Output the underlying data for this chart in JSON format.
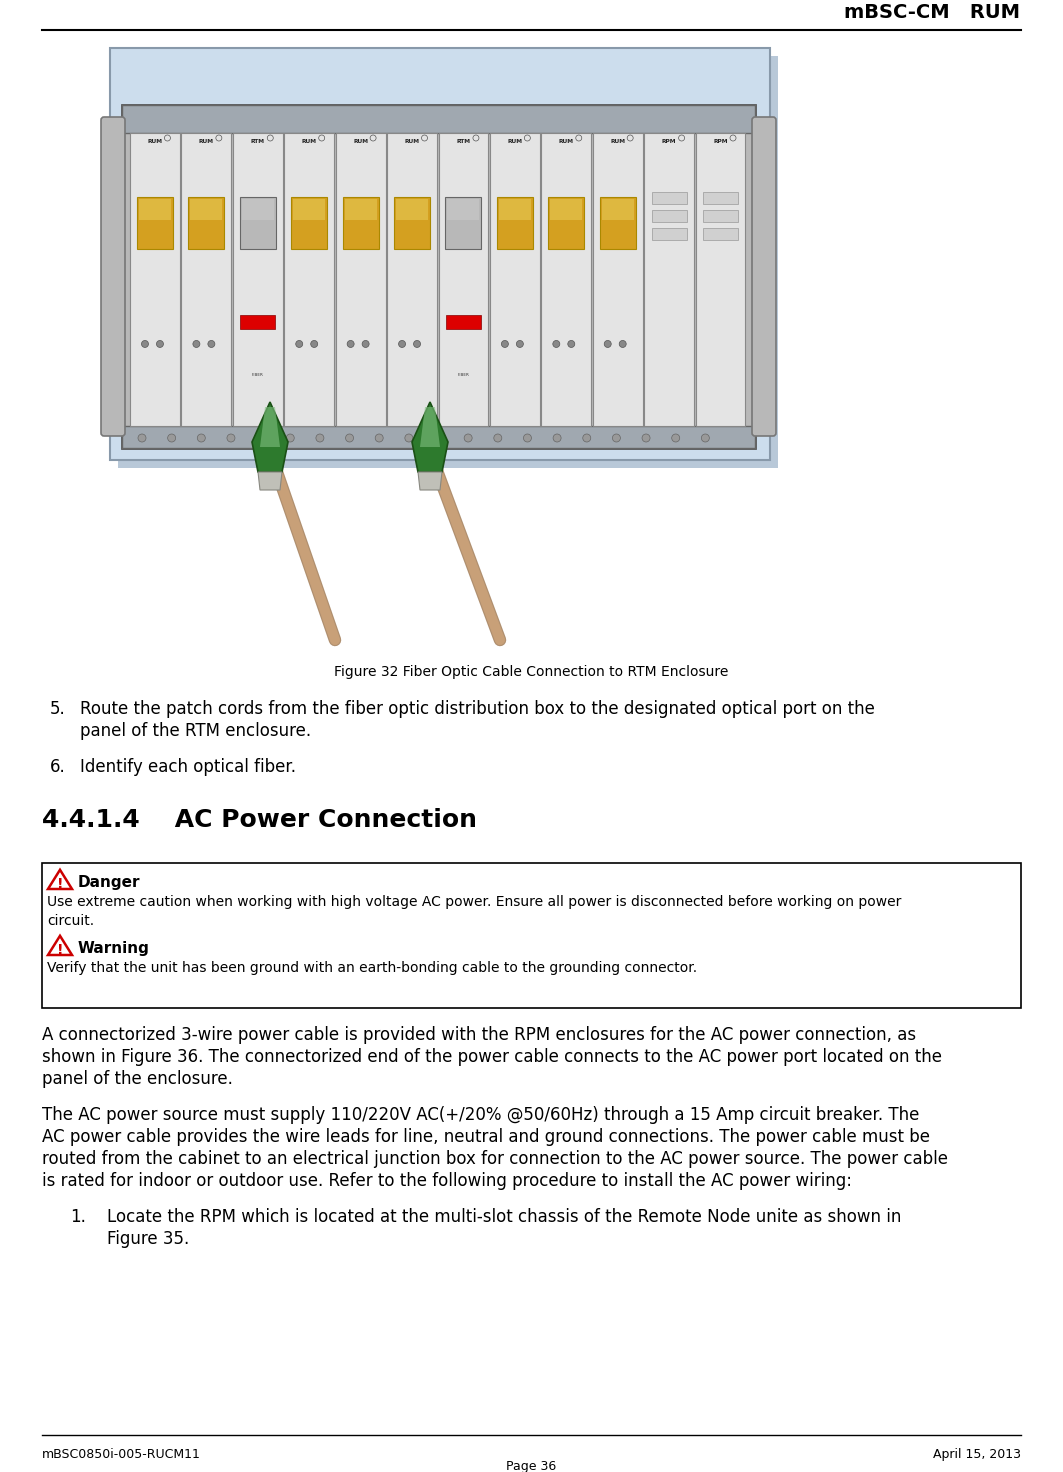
{
  "header_title": "mBSC-CM   RUM",
  "footer_left": "mBSC0850i-005-RUCM11",
  "footer_right": "April 15, 2013",
  "footer_center": "Page 36",
  "figure_caption": "Figure 32 Fiber Optic Cable Connection to RTM Enclosure",
  "section_heading": "4.4.1.4    AC Power Connection",
  "danger_label": "Danger",
  "danger_text": "Use extreme caution when working with high voltage AC power. Ensure all power is disconnected before working on power\ncircuit.",
  "warning_label": "Warning",
  "warning_text": "Verify that the unit has been ground with an earth-bonding cable to the grounding connector.",
  "item5_num": "5.",
  "item5": "Route the patch cords from the fiber optic distribution box to the designated optical port on the\npanel of the RTM enclosure.",
  "item6_num": "6.",
  "item6": "Identify each optical fiber.",
  "para1": "A connectorized 3-wire power cable is provided with the RPM enclosures for the AC power connection, as\nshown in Figure 36. The connectorized end of the power cable connects to the AC power port located on the\npanel of the enclosure.",
  "para2_line1": "The AC power source must supply 110/220V AC(+/20% @50/60Hz) through a 15 Amp circuit breaker. The",
  "para2_line2": "AC power cable provides the wire leads for line, neutral and ground connections. The power cable must be",
  "para2_line3": "routed from the cabinet to an electrical junction box for connection to the AC power source. The power cable",
  "para2_line4": "is rated for indoor or outdoor use. Refer to the following procedure to install the AC power wiring:",
  "item1_num": "1.",
  "item1_line1": "Locate the RPM which is located at the multi-slot chassis of the Remote Node unite as shown in",
  "item1_line2": "Figure 35.",
  "bg_color": "#ffffff",
  "text_color": "#000000",
  "slot_labels": [
    "RUM",
    "RUM",
    "RTM",
    "RUM",
    "RUM",
    "RUM",
    "RTM",
    "RUM",
    "RUM",
    "RUM",
    "RPM",
    "RPM"
  ],
  "cable_color": "#c8a078",
  "connector_green": "#2d7a2d",
  "connector_highlight": "#a0c0a0",
  "chassis_bg": "#d0d8e8",
  "chassis_body": "#c8c8c8",
  "module_bg": "#e0e0e0",
  "golden_connector": "#d4a020",
  "red_led": "#dd0000",
  "box_border": "#000000",
  "box_bg": "#ffffff",
  "danger_red": "#cc0000",
  "triangle_yellow": "#ffcc00",
  "triangle_red": "#cc0000"
}
